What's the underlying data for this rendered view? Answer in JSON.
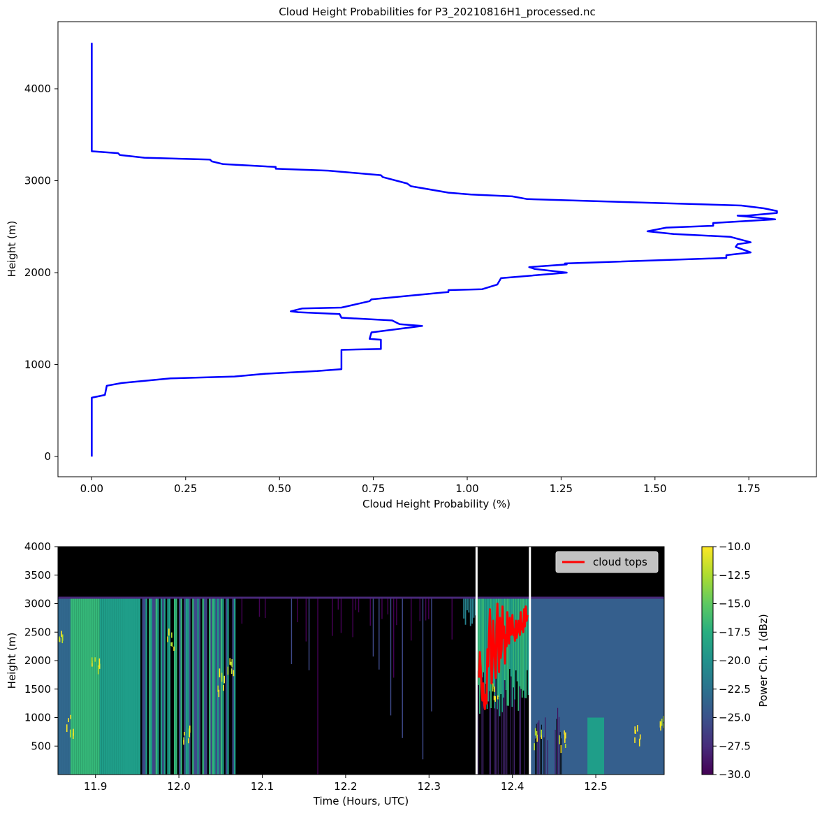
{
  "chart_data": [
    {
      "type": "line",
      "title": "Cloud Height Probabilities for P3_20210816H1_processed.nc",
      "xlabel": "Cloud Height Probability (%)",
      "ylabel": "Height (m)",
      "xlim": [
        -0.09,
        1.93
      ],
      "ylim": [
        -220,
        4730
      ],
      "xticks": [
        0.0,
        0.25,
        0.5,
        0.75,
        1.0,
        1.25,
        1.5,
        1.75
      ],
      "xtick_labels": [
        "0.00",
        "0.25",
        "0.50",
        "0.75",
        "1.00",
        "1.25",
        "1.50",
        "1.75"
      ],
      "yticks": [
        0,
        1000,
        2000,
        3000,
        4000
      ],
      "ytick_labels": [
        "0",
        "1000",
        "2000",
        "3000",
        "4000"
      ],
      "grid": false,
      "series": [
        {
          "color": "#0000ff",
          "points": [
            [
              0.0,
              0
            ],
            [
              0.0,
              640
            ],
            [
              0.035,
              670
            ],
            [
              0.04,
              770
            ],
            [
              0.08,
              800
            ],
            [
              0.21,
              850
            ],
            [
              0.38,
              870
            ],
            [
              0.46,
              900
            ],
            [
              0.6,
              930
            ],
            [
              0.665,
              950
            ],
            [
              0.665,
              1160
            ],
            [
              0.77,
              1170
            ],
            [
              0.77,
              1270
            ],
            [
              0.74,
              1280
            ],
            [
              0.745,
              1350
            ],
            [
              0.88,
              1420
            ],
            [
              0.82,
              1440
            ],
            [
              0.8,
              1480
            ],
            [
              0.665,
              1510
            ],
            [
              0.66,
              1550
            ],
            [
              0.55,
              1570
            ],
            [
              0.53,
              1580
            ],
            [
              0.56,
              1610
            ],
            [
              0.665,
              1620
            ],
            [
              0.74,
              1690
            ],
            [
              0.745,
              1710
            ],
            [
              0.95,
              1790
            ],
            [
              0.95,
              1810
            ],
            [
              1.04,
              1820
            ],
            [
              1.08,
              1870
            ],
            [
              1.09,
              1940
            ],
            [
              1.265,
              2000
            ],
            [
              1.18,
              2040
            ],
            [
              1.165,
              2060
            ],
            [
              1.265,
              2090
            ],
            [
              1.26,
              2100
            ],
            [
              1.69,
              2160
            ],
            [
              1.69,
              2190
            ],
            [
              1.755,
              2220
            ],
            [
              1.715,
              2280
            ],
            [
              1.72,
              2310
            ],
            [
              1.755,
              2330
            ],
            [
              1.7,
              2390
            ],
            [
              1.55,
              2420
            ],
            [
              1.48,
              2450
            ],
            [
              1.53,
              2490
            ],
            [
              1.655,
              2510
            ],
            [
              1.655,
              2540
            ],
            [
              1.82,
              2580
            ],
            [
              1.72,
              2620
            ],
            [
              1.745,
              2620
            ],
            [
              1.825,
              2650
            ],
            [
              1.825,
              2670
            ],
            [
              1.79,
              2700
            ],
            [
              1.73,
              2730
            ],
            [
              1.16,
              2800
            ],
            [
              1.12,
              2830
            ],
            [
              1.01,
              2850
            ],
            [
              0.95,
              2870
            ],
            [
              0.85,
              2940
            ],
            [
              0.84,
              2970
            ],
            [
              0.775,
              3040
            ],
            [
              0.77,
              3060
            ],
            [
              0.63,
              3110
            ],
            [
              0.49,
              3130
            ],
            [
              0.49,
              3150
            ],
            [
              0.35,
              3180
            ],
            [
              0.32,
              3210
            ],
            [
              0.315,
              3230
            ],
            [
              0.14,
              3250
            ],
            [
              0.075,
              3280
            ],
            [
              0.07,
              3300
            ],
            [
              0.0,
              3320
            ],
            [
              0.0,
              4500
            ]
          ]
        }
      ]
    },
    {
      "type": "heatmap",
      "xlabel": "Time (Hours, UTC)",
      "ylabel": "Height (m)",
      "xlim": [
        11.855,
        12.582
      ],
      "ylim": [
        0,
        4000
      ],
      "xticks": [
        11.9,
        12.0,
        12.1,
        12.2,
        12.3,
        12.4,
        12.5
      ],
      "xtick_labels": [
        "11.9",
        "12.0",
        "12.1",
        "12.2",
        "12.3",
        "12.4",
        "12.5"
      ],
      "yticks": [
        500,
        1000,
        1500,
        2000,
        2500,
        3000,
        3500,
        4000
      ],
      "ytick_labels": [
        "500",
        "1000",
        "1500",
        "2000",
        "2500",
        "3000",
        "3500",
        "4000"
      ],
      "colormap": "viridis",
      "colorbar": {
        "label": "Power Ch. 1 (dBz)",
        "range": [
          -30,
          -10
        ],
        "ticks": [
          -10,
          -12.5,
          -15,
          -17.5,
          -20,
          -22.5,
          -25,
          -27.5,
          -30
        ],
        "tick_labels": [
          "−10.0",
          "−12.5",
          "−15.0",
          "−17.5",
          "−20.0",
          "−22.5",
          "−25.0",
          "−27.5",
          "−30.0"
        ]
      },
      "data_top_height": 3110,
      "vertical_lines": [
        12.357,
        12.421
      ],
      "vertical_line_color": "#ffffff",
      "legend": {
        "placement": "top-right",
        "entries": [
          {
            "label": "cloud tops",
            "color": "#ff0000"
          }
        ]
      },
      "overlay_series": {
        "name": "cloud tops",
        "color": "#ff0000",
        "x": [
          12.36,
          12.361,
          12.362,
          12.363,
          12.364,
          12.365,
          12.366,
          12.367,
          12.368,
          12.369,
          12.37,
          12.371,
          12.372,
          12.373,
          12.374,
          12.375,
          12.376,
          12.377,
          12.378,
          12.379,
          12.38,
          12.381,
          12.382,
          12.383,
          12.384,
          12.385,
          12.386,
          12.387,
          12.388,
          12.389,
          12.39,
          12.391,
          12.392,
          12.393,
          12.394,
          12.395,
          12.396,
          12.397,
          12.398,
          12.399,
          12.4,
          12.401,
          12.402,
          12.403,
          12.404,
          12.405,
          12.406,
          12.407,
          12.408,
          12.409,
          12.41,
          12.411,
          12.412,
          12.413,
          12.414,
          12.415,
          12.416,
          12.417,
          12.418
        ],
        "y": [
          1700,
          2150,
          1850,
          1550,
          1300,
          1600,
          1250,
          1150,
          1400,
          1250,
          2200,
          1900,
          2500,
          2900,
          2400,
          1600,
          1900,
          2700,
          2300,
          2000,
          1700,
          2600,
          3000,
          2300,
          1800,
          2750,
          2050,
          2200,
          2950,
          2400,
          2600,
          1950,
          2450,
          2250,
          2850,
          2500,
          2300,
          2750,
          2450,
          2500,
          2800,
          2450,
          2550,
          2350,
          2700,
          2400,
          2500,
          2700,
          2550,
          2450,
          2850,
          2550,
          2650,
          2500,
          2900,
          2600,
          2950,
          2700,
          2800
        ]
      },
      "features": [
        {
          "kind": "band",
          "x": [
            11.855,
            11.95
          ],
          "top": 3110,
          "shade": "mid-green"
        },
        {
          "kind": "band",
          "x": [
            11.95,
            12.068
          ],
          "top": 3110,
          "shade": "mixed"
        },
        {
          "kind": "band",
          "x": [
            12.068,
            12.341
          ],
          "top": 3100,
          "shade": "mostly-empty"
        },
        {
          "kind": "band",
          "x": [
            12.341,
            12.357
          ],
          "top": 3110,
          "shade": "teal-partial"
        },
        {
          "kind": "band",
          "x": [
            12.357,
            12.421
          ],
          "top": 3110,
          "shade": "dark-below-cloud"
        },
        {
          "kind": "band",
          "x": [
            12.421,
            12.582
          ],
          "top": 3110,
          "shade": "uniform-blue"
        }
      ]
    }
  ]
}
